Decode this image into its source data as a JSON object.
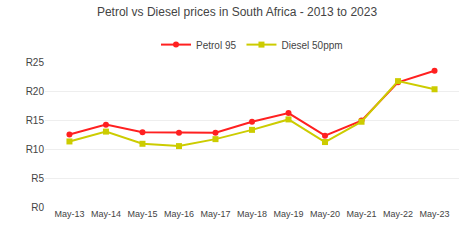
{
  "chart_data": {
    "type": "line",
    "title": "Petrol vs Diesel prices in South Africa - 2013 to 2023",
    "categories": [
      "May-13",
      "May-14",
      "May-15",
      "May-16",
      "May-17",
      "May-18",
      "May-19",
      "May-20",
      "May-21",
      "May-22",
      "May-23"
    ],
    "series": [
      {
        "name": "Petrol 95",
        "color": "#ff2020",
        "marker": "circle",
        "values": [
          12.5,
          14.2,
          12.9,
          12.8,
          12.8,
          14.7,
          16.2,
          12.3,
          14.9,
          21.5,
          23.5
        ]
      },
      {
        "name": "Diesel 50ppm",
        "color": "#cccc00",
        "marker": "square",
        "values": [
          11.3,
          13.0,
          10.9,
          10.5,
          11.7,
          13.3,
          15.1,
          11.2,
          14.7,
          21.7,
          20.3
        ]
      }
    ],
    "ylim": [
      0,
      25
    ],
    "yticks": [
      {
        "value": 0,
        "label": "R0"
      },
      {
        "value": 5,
        "label": "R5"
      },
      {
        "value": 10,
        "label": "R10"
      },
      {
        "value": 15,
        "label": "R15"
      },
      {
        "value": 20,
        "label": "R20"
      },
      {
        "value": 25,
        "label": "R25"
      }
    ],
    "grid": true,
    "legend": "top"
  }
}
